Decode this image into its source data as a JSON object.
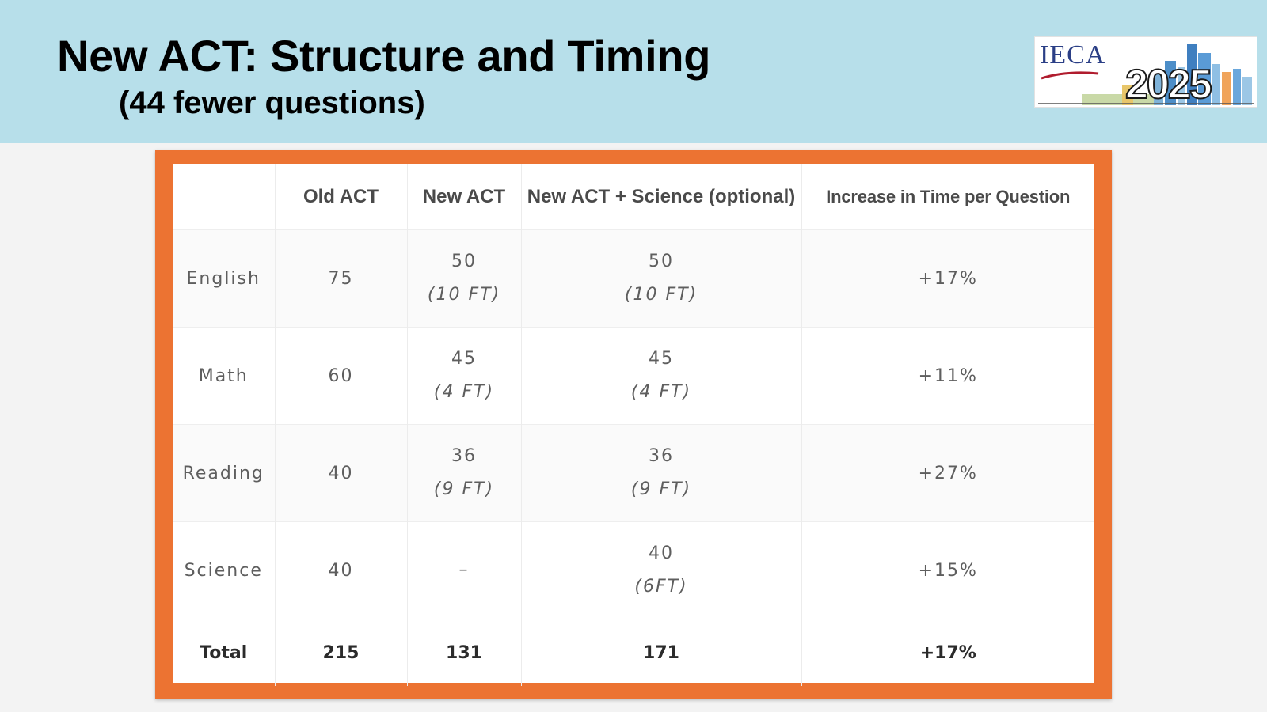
{
  "slide": {
    "title": "New ACT: Structure and Timing",
    "subtitle": "(44 fewer questions)"
  },
  "logo": {
    "text": "IECA",
    "year": "2025"
  },
  "table": {
    "headers": [
      "",
      "Old ACT",
      "New ACT",
      "New ACT + Science (optional)",
      "Increase in Time per Question"
    ],
    "rows": [
      {
        "label": "English",
        "old": "75",
        "new": "50",
        "new_ft": "(10 FT)",
        "sci": "50",
        "sci_ft": "(10 FT)",
        "increase": "+17%"
      },
      {
        "label": "Math",
        "old": "60",
        "new": "45",
        "new_ft": "(4 FT)",
        "sci": "45",
        "sci_ft": "(4 FT)",
        "increase": "+11%"
      },
      {
        "label": "Reading",
        "old": "40",
        "new": "36",
        "new_ft": "(9 FT)",
        "sci": "36",
        "sci_ft": "(9 FT)",
        "increase": "+27%"
      },
      {
        "label": "Science",
        "old": "40",
        "new": "–",
        "new_ft": "",
        "sci": "40",
        "sci_ft": "(6FT)",
        "increase": "+15%"
      }
    ],
    "total": {
      "label": "Total",
      "old": "215",
      "new": "131",
      "sci": "171",
      "increase": "+17%"
    }
  },
  "colors": {
    "header_band": "#b7dfea",
    "frame": "#ec7332"
  }
}
